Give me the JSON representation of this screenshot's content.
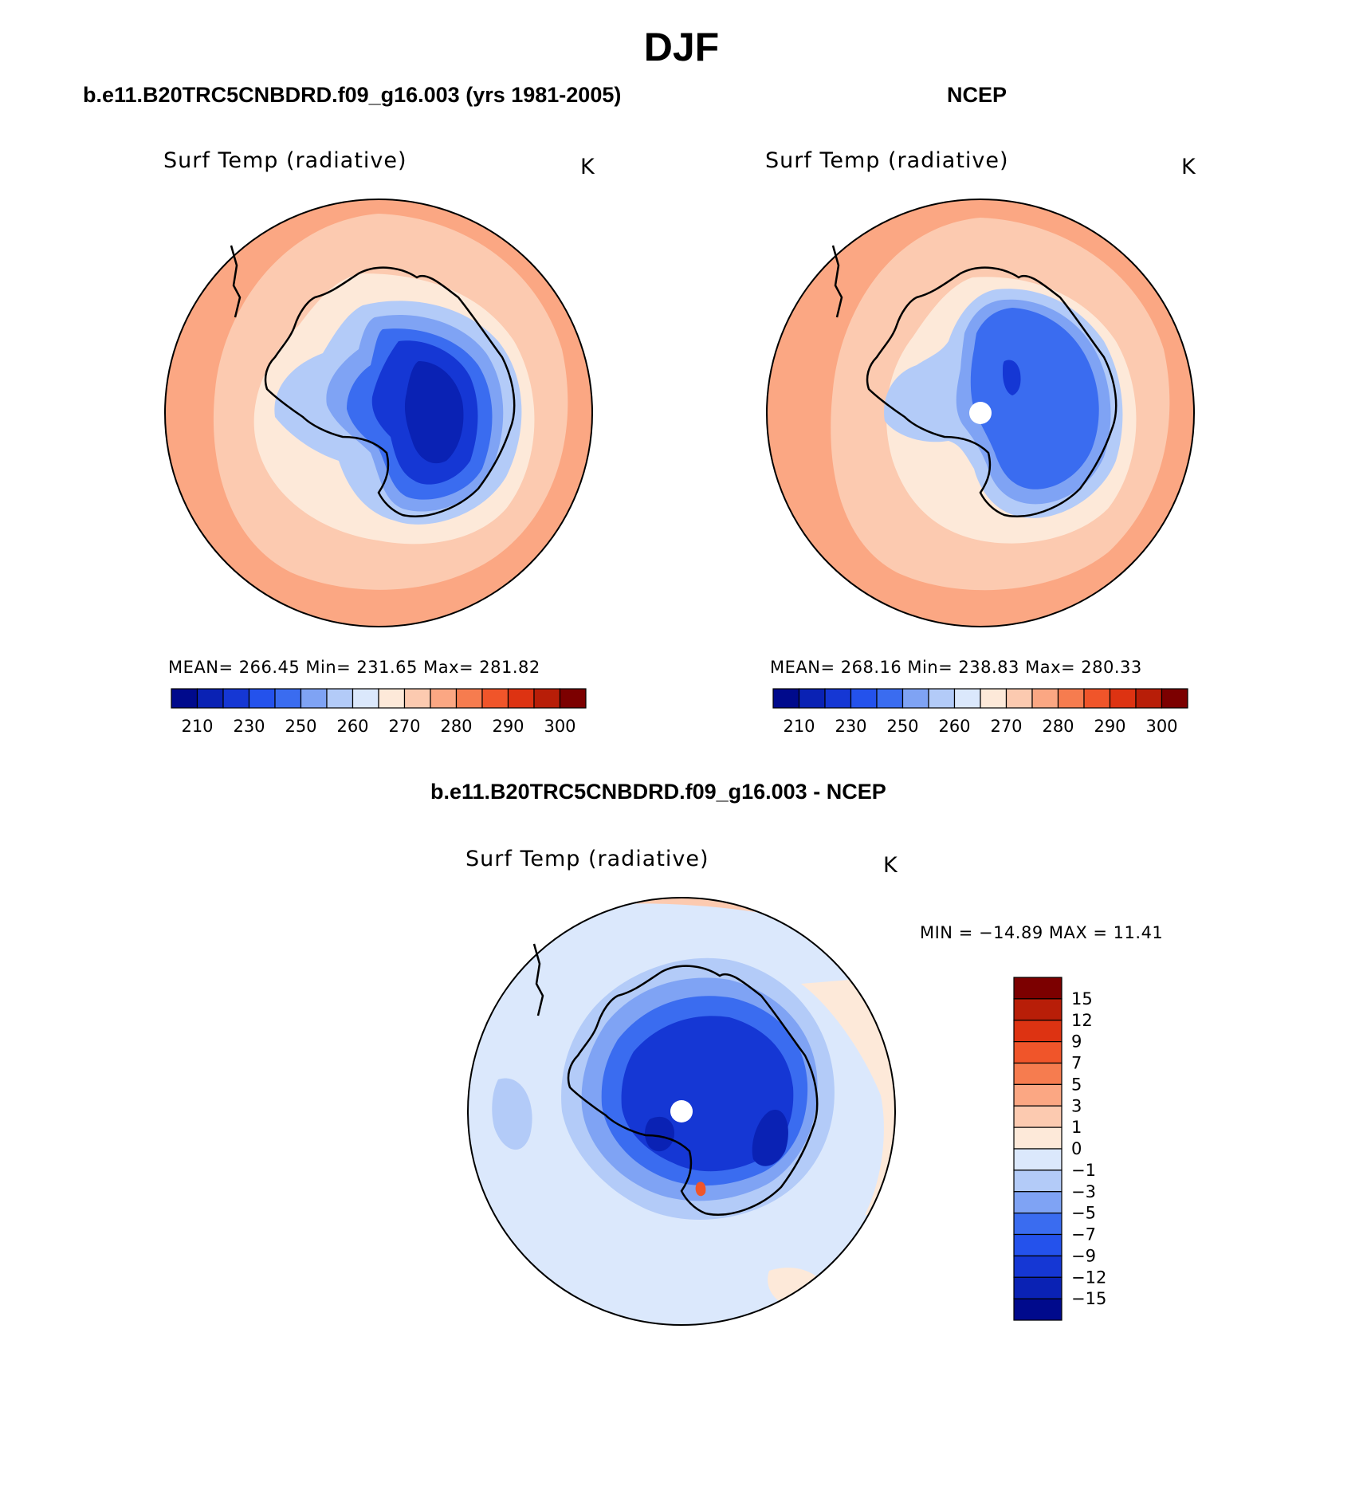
{
  "season_title": "DJF",
  "panels": [
    {
      "id": "model",
      "header": "b.e11.B20TRC5CNBDRD.f09_g16.003 (yrs 1981-2005)",
      "variable_title": "Surf Temp (radiative)",
      "units": "K",
      "stats": "MEAN= 266.45   Min= 231.65   Max= 281.82"
    },
    {
      "id": "ncep",
      "header": "NCEP",
      "variable_title": "Surf Temp (radiative)",
      "units": "K",
      "stats": "MEAN= 268.16   Min= 238.83   Max= 280.33"
    },
    {
      "id": "difference",
      "header": "b.e11.B20TRC5CNBDRD.f09_g16.003 - NCEP",
      "variable_title": "Surf Temp (radiative)",
      "units": "K",
      "stats": "MIN = −14.89 MAX =   11.41"
    }
  ],
  "abs_colorbar": {
    "colors": [
      "#000a8c",
      "#0a22b4",
      "#1537d4",
      "#2452ec",
      "#3a6cf0",
      "#7fa3f4",
      "#b3cbf8",
      "#dbe8fc",
      "#fde9d9",
      "#fccab0",
      "#fba783",
      "#f67c4f",
      "#f0552a",
      "#dd3312",
      "#b81e08",
      "#7c0000"
    ],
    "labels": [
      "210",
      "230",
      "250",
      "260",
      "270",
      "280",
      "290",
      "300"
    ]
  },
  "diff_colorbar": {
    "colors": [
      "#000a8c",
      "#0a22b4",
      "#1537d4",
      "#2452ec",
      "#3a6cf0",
      "#7fa3f4",
      "#b3cbf8",
      "#dbe8fc",
      "#fde9d9",
      "#fccab0",
      "#fba783",
      "#f67c4f",
      "#f0552a",
      "#dd3312",
      "#b81e08",
      "#7c0000"
    ],
    "labels": [
      "−15",
      "−12",
      "−9",
      "−7",
      "−5",
      "−3",
      "−1",
      "0",
      "1",
      "3",
      "5",
      "7",
      "9",
      "12",
      "15"
    ]
  },
  "map_colors": {
    "outer_warm": "#fba783",
    "mid_warm": "#fccab0",
    "near_zero": "#fde9d9",
    "pale_blue": "#b3cbf8",
    "mid_blue": "#7fa3f4",
    "blue": "#3a6cf0",
    "deep_blue": "#1537d4",
    "darkest_blue": "#0a22b4",
    "diff_light_blue": "#dbe8fc",
    "hot_spot": "#f0552a"
  }
}
